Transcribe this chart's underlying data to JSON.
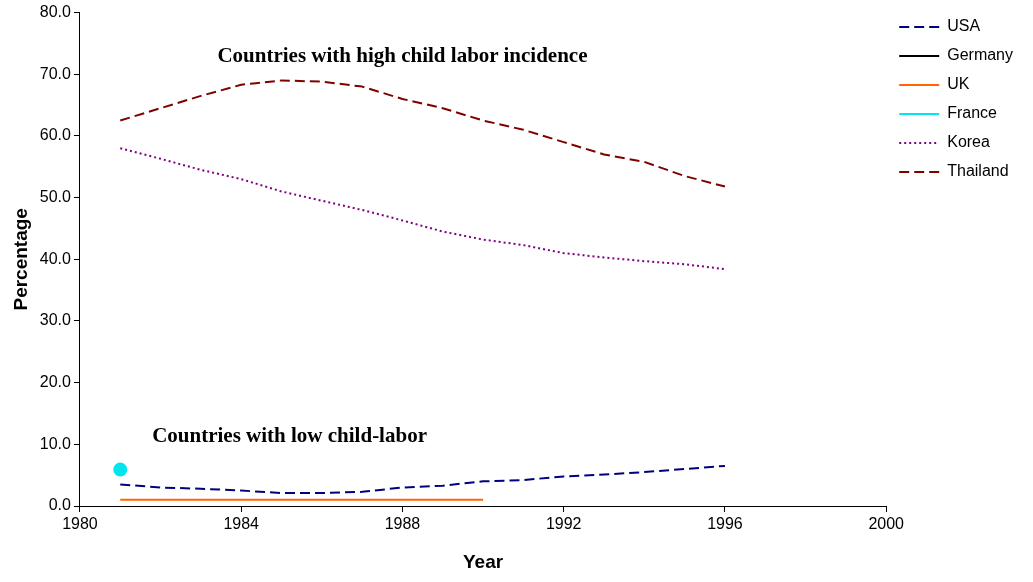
{
  "chart_data": {
    "type": "line",
    "xlabel": "Year",
    "ylabel": "Percentage",
    "xlim": [
      1980,
      2000
    ],
    "xticks": [
      1980,
      1984,
      1988,
      1992,
      1996,
      2000
    ],
    "ylim": [
      0,
      80
    ],
    "yticks": [
      {
        "value": 0,
        "label": "0.0"
      },
      {
        "value": 10,
        "label": "10.0"
      },
      {
        "value": 20,
        "label": "20.0"
      },
      {
        "value": 30,
        "label": "30.0"
      },
      {
        "value": 40,
        "label": "40.0"
      },
      {
        "value": 50,
        "label": "50.0"
      },
      {
        "value": 60,
        "label": "60.0"
      },
      {
        "value": 70,
        "label": "70.0"
      },
      {
        "value": 80,
        "label": "80.0"
      }
    ],
    "x": [
      1981,
      1982,
      1983,
      1984,
      1985,
      1986,
      1987,
      1988,
      1989,
      1990,
      1991,
      1992,
      1993,
      1994,
      1995,
      1996
    ],
    "grid": false,
    "legend": "right",
    "marker": "none",
    "series": [
      {
        "name": "USA",
        "color": "#000080",
        "line_style": "dashed",
        "values": [
          3.5,
          3.0,
          2.8,
          2.5,
          2.1,
          2.1,
          2.3,
          3.0,
          3.3,
          4.0,
          4.2,
          4.8,
          5.1,
          5.5,
          6.0,
          6.5
        ]
      },
      {
        "name": "Germany",
        "color": "#000000",
        "line_style": "solid",
        "values": [
          null,
          null,
          null,
          null,
          null,
          null,
          null,
          null,
          null,
          null,
          null,
          null,
          null,
          null,
          null,
          null
        ]
      },
      {
        "name": "UK",
        "color": "#ff6600",
        "line_style": "solid",
        "values": [
          1.0,
          1.0,
          1.0,
          1.0,
          1.0,
          1.0,
          1.0,
          1.0,
          1.0,
          1.0,
          null,
          null,
          null,
          null,
          null,
          null
        ]
      },
      {
        "name": "France",
        "color": "#00e5ee",
        "line_style": "solid",
        "marker": "circle",
        "values": [
          5.9,
          null,
          null,
          null,
          null,
          null,
          null,
          null,
          null,
          null,
          null,
          null,
          null,
          null,
          null,
          null
        ]
      },
      {
        "name": "Korea",
        "color": "#800080",
        "line_style": "dotted",
        "values": [
          58.0,
          56.3,
          54.5,
          53.0,
          51.0,
          49.5,
          48.0,
          46.3,
          44.5,
          43.2,
          42.3,
          41.0,
          40.3,
          39.7,
          39.2,
          38.4
        ]
      },
      {
        "name": "Thailand",
        "color": "#800000",
        "line_style": "dashed",
        "values": [
          62.5,
          64.5,
          66.5,
          68.3,
          69.0,
          68.8,
          68.0,
          66.0,
          64.5,
          62.5,
          61.0,
          59.0,
          57.0,
          55.8,
          53.5,
          51.8
        ]
      }
    ],
    "annotations": [
      "Countries with high child labor incidence",
      "Countries with low child-labor"
    ]
  }
}
